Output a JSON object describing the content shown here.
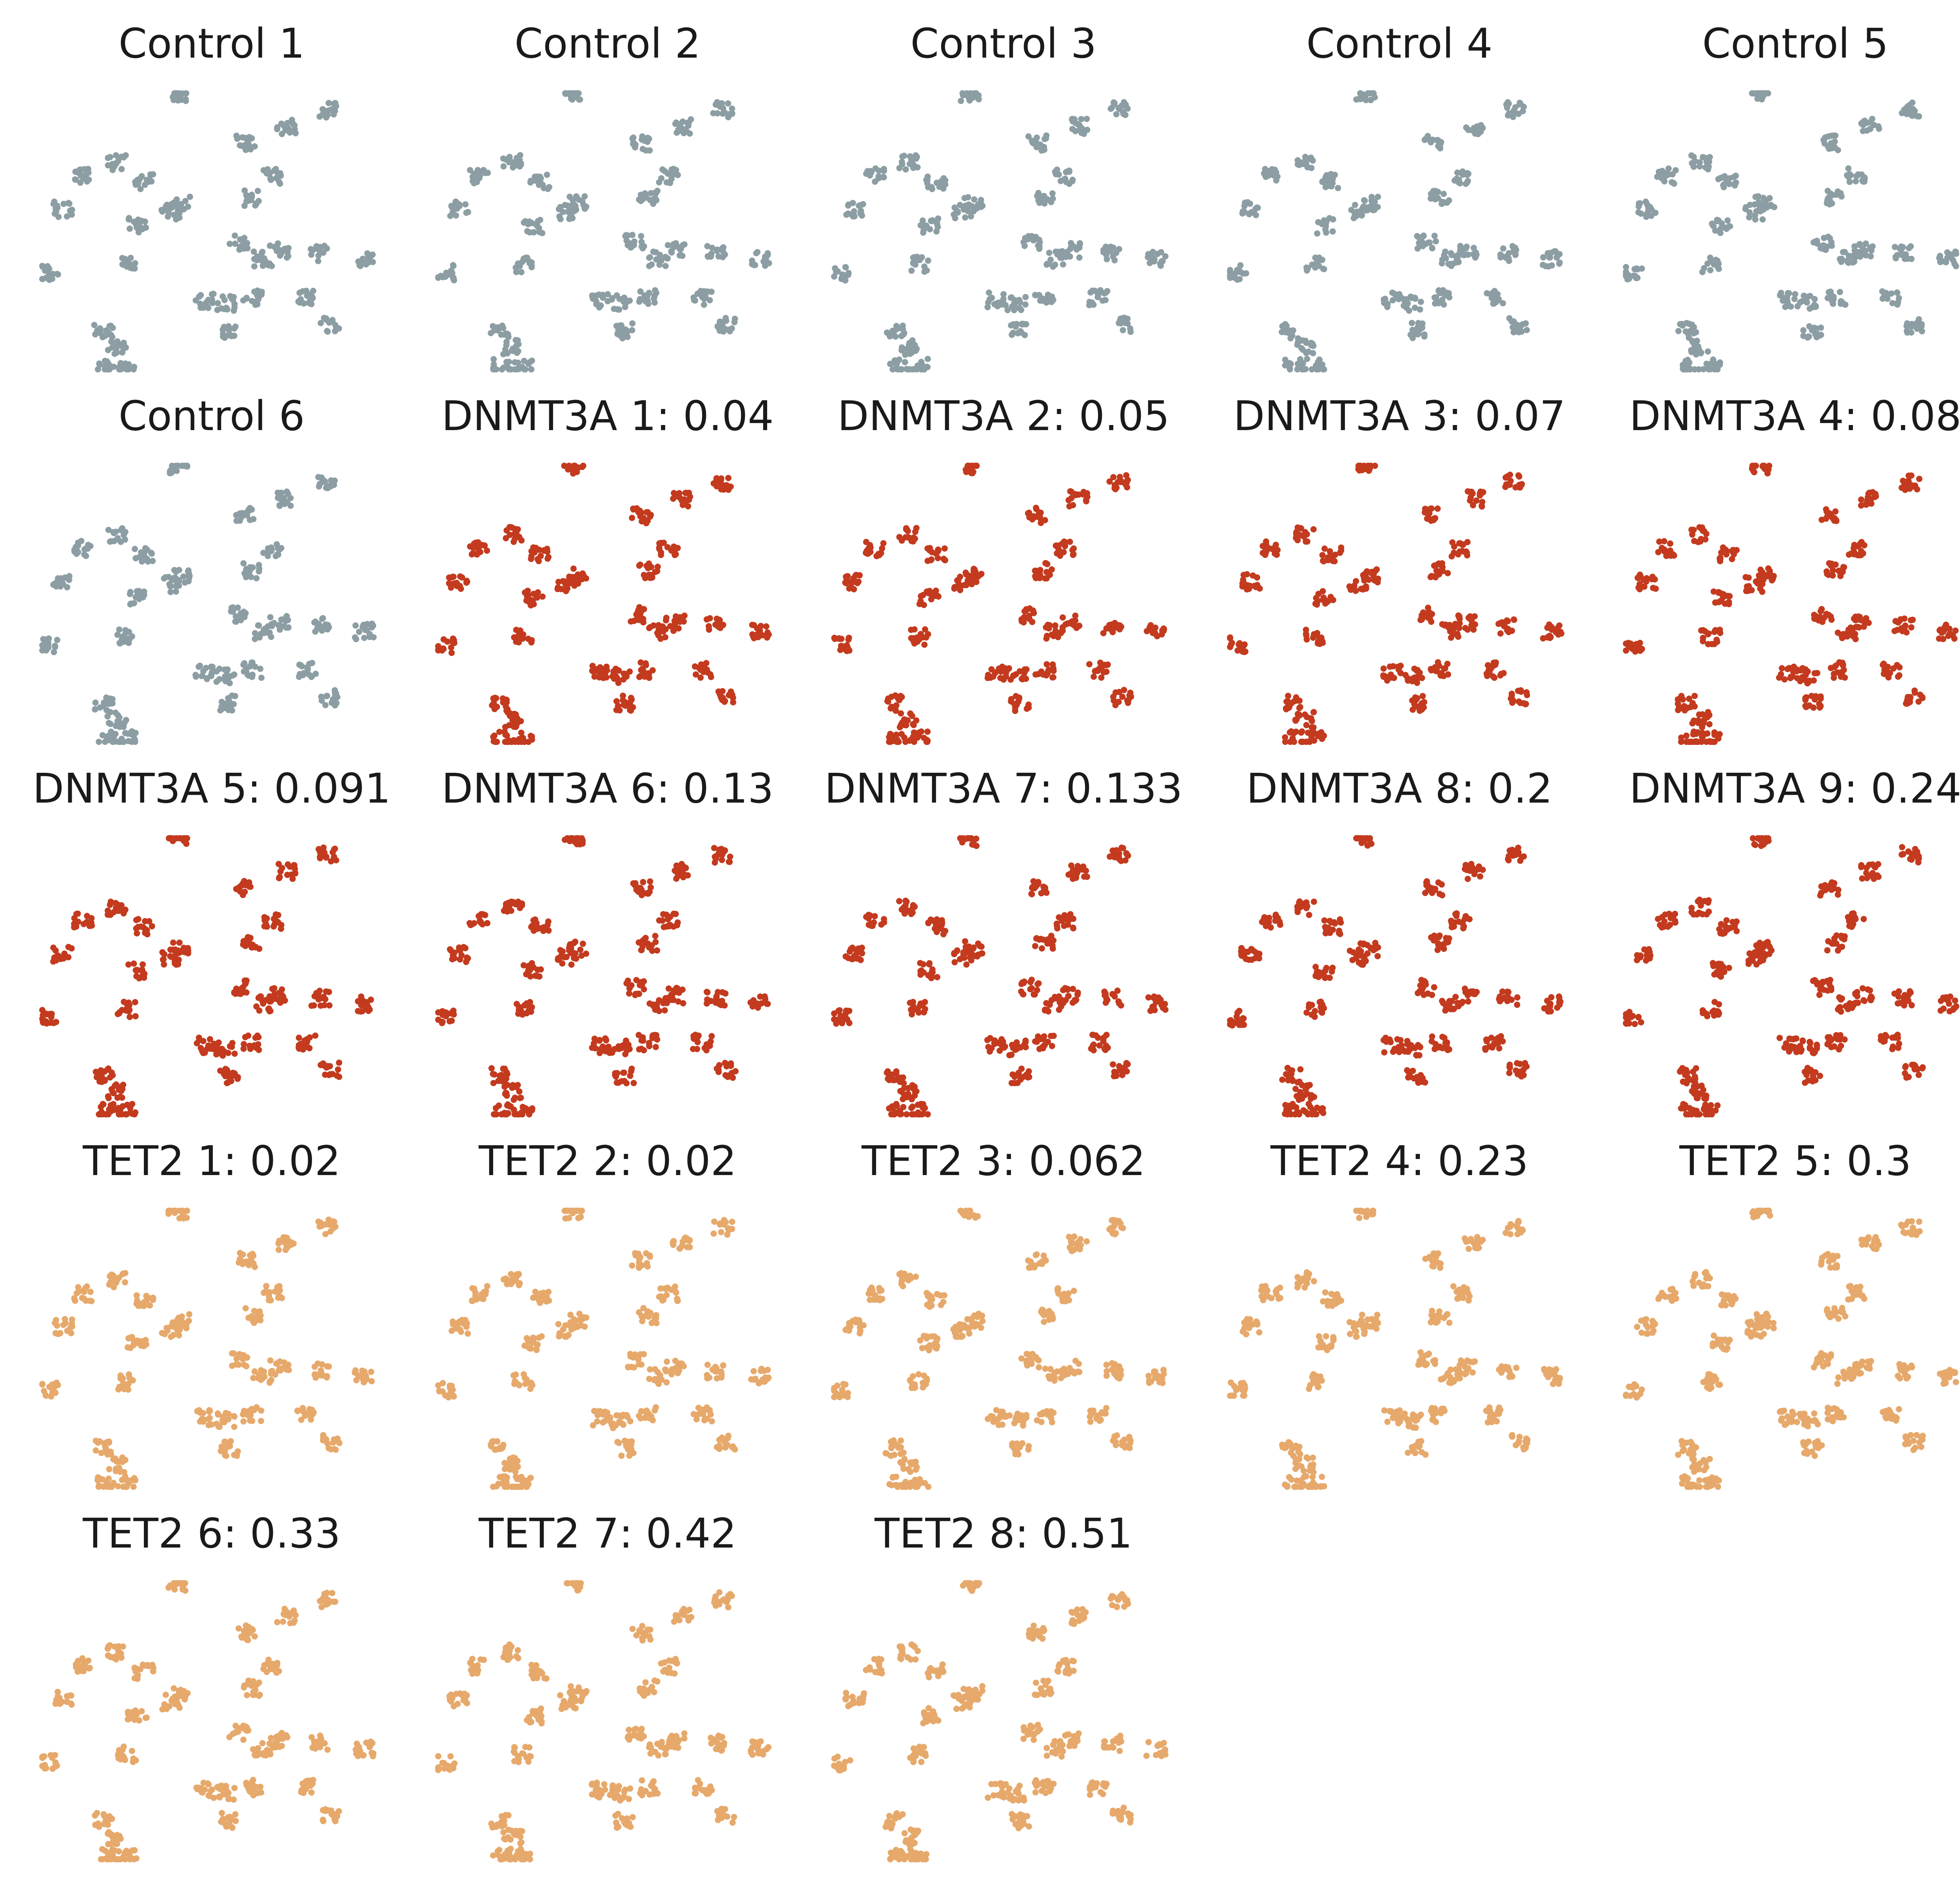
{
  "colors": {
    "control": "#8c9ea3",
    "DNMT3A": "#c33a1e",
    "TET2": "#e6a96b"
  },
  "chart_data": {
    "type": "scatter",
    "layout": "5 columns x 5 rows of small-multiple UMAP-style scatter panels, no axes",
    "clusters": [
      {
        "name": "top-left-arm",
        "points": [
          [
            0.12,
            0.3
          ],
          [
            0.22,
            0.25
          ],
          [
            0.3,
            0.32
          ],
          [
            0.28,
            0.48
          ],
          [
            0.25,
            0.62
          ],
          [
            0.06,
            0.42
          ]
        ]
      },
      {
        "name": "top-right-blob",
        "points": [
          [
            0.6,
            0.18
          ],
          [
            0.72,
            0.12
          ],
          [
            0.84,
            0.06
          ],
          [
            0.68,
            0.3
          ],
          [
            0.62,
            0.38
          ]
        ]
      },
      {
        "name": "middle-band",
        "points": [
          [
            0.58,
            0.54
          ],
          [
            0.7,
            0.57
          ],
          [
            0.82,
            0.58
          ],
          [
            0.95,
            0.6
          ],
          [
            0.65,
            0.6
          ]
        ]
      },
      {
        "name": "lower-middle-blob",
        "points": [
          [
            0.48,
            0.75
          ],
          [
            0.54,
            0.76
          ],
          [
            0.55,
            0.86
          ],
          [
            0.62,
            0.74
          ],
          [
            0.78,
            0.74
          ]
        ]
      },
      {
        "name": "bottom-left-blob",
        "points": [
          [
            0.18,
            0.86
          ],
          [
            0.22,
            0.92
          ],
          [
            0.25,
            0.99
          ],
          [
            0.19,
            0.99
          ]
        ]
      },
      {
        "name": "small-dots",
        "points": [
          [
            0.38,
            0.43
          ],
          [
            0.41,
            0.4
          ],
          [
            0.85,
            0.84
          ],
          [
            0.02,
            0.65
          ],
          [
            0.4,
            0.0
          ]
        ]
      }
    ],
    "panels": [
      {
        "title": "Control 1",
        "group": "control",
        "seed": 11
      },
      {
        "title": "Control 2",
        "group": "control",
        "seed": 12
      },
      {
        "title": "Control 3",
        "group": "control",
        "seed": 13
      },
      {
        "title": "Control 4",
        "group": "control",
        "seed": 14
      },
      {
        "title": "Control 5",
        "group": "control",
        "seed": 15
      },
      {
        "title": "Control 6",
        "group": "control",
        "seed": 16
      },
      {
        "title": "DNMT3A 1: 0.04",
        "group": "DNMT3A",
        "seed": 21
      },
      {
        "title": "DNMT3A 2: 0.05",
        "group": "DNMT3A",
        "seed": 22
      },
      {
        "title": "DNMT3A 3: 0.07",
        "group": "DNMT3A",
        "seed": 23
      },
      {
        "title": "DNMT3A 4: 0.08",
        "group": "DNMT3A",
        "seed": 24
      },
      {
        "title": "DNMT3A 5: 0.091",
        "group": "DNMT3A",
        "seed": 25
      },
      {
        "title": "DNMT3A 6: 0.13",
        "group": "DNMT3A",
        "seed": 26
      },
      {
        "title": "DNMT3A 7: 0.133",
        "group": "DNMT3A",
        "seed": 27
      },
      {
        "title": "DNMT3A 8: 0.2",
        "group": "DNMT3A",
        "seed": 28
      },
      {
        "title": "DNMT3A 9: 0.24",
        "group": "DNMT3A",
        "seed": 29
      },
      {
        "title": "TET2 1: 0.02",
        "group": "TET2",
        "seed": 31
      },
      {
        "title": "TET2 2: 0.02",
        "group": "TET2",
        "seed": 32
      },
      {
        "title": "TET2 3: 0.062",
        "group": "TET2",
        "seed": 33
      },
      {
        "title": "TET2 4: 0.23",
        "group": "TET2",
        "seed": 34
      },
      {
        "title": "TET2 5: 0.3",
        "group": "TET2",
        "seed": 35
      },
      {
        "title": "TET2 6: 0.33",
        "group": "TET2",
        "seed": 36
      },
      {
        "title": "TET2 7: 0.42",
        "group": "TET2",
        "seed": 37
      },
      {
        "title": "TET2 8: 0.51",
        "group": "TET2",
        "seed": 38
      }
    ]
  }
}
